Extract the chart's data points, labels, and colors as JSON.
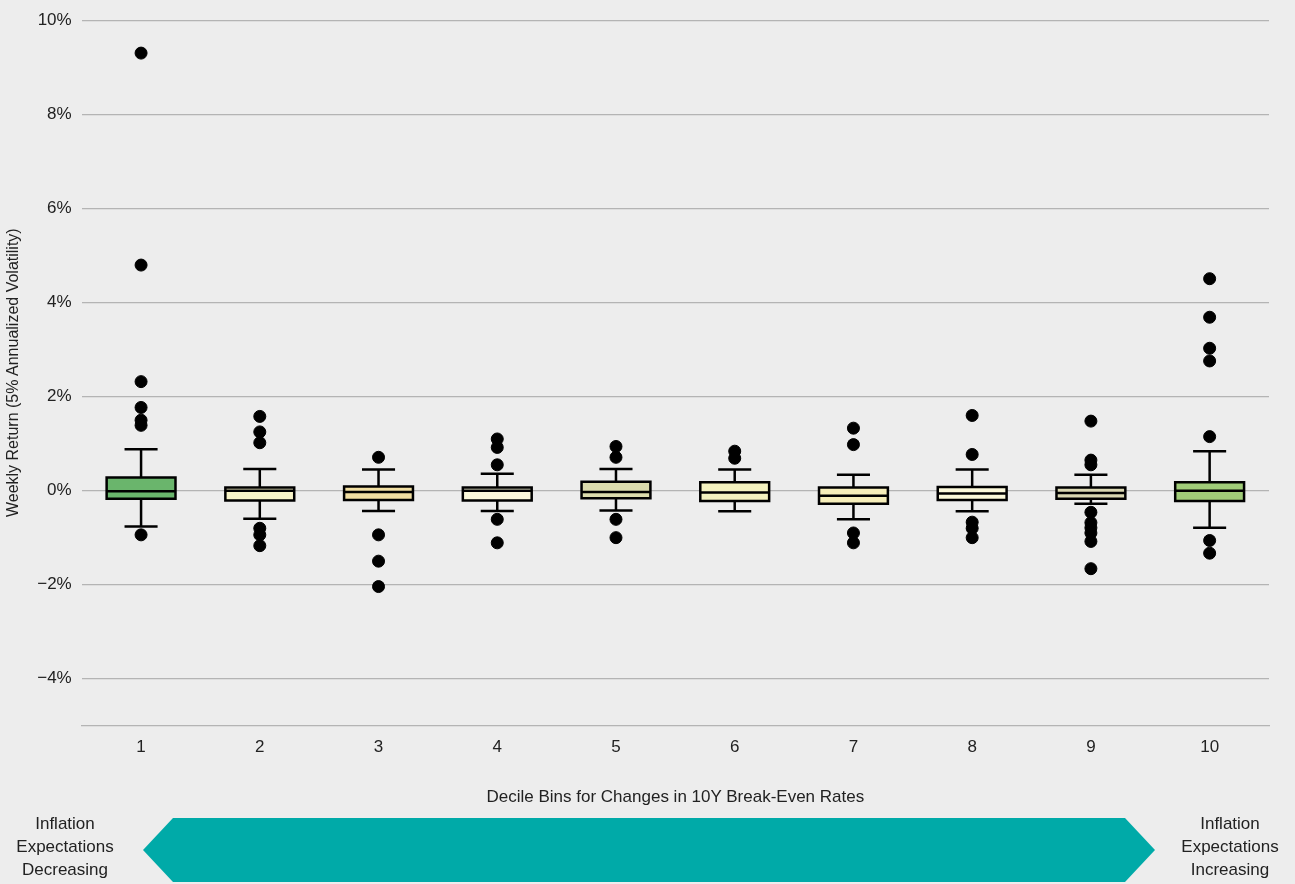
{
  "chart_data": {
    "type": "box",
    "xlabel": "Decile Bins for Changes in 10Y Break-Even Rates",
    "ylabel": "Weekly Return (5% Annualized Volatility)",
    "categories": [
      "1",
      "2",
      "3",
      "4",
      "5",
      "6",
      "7",
      "8",
      "9",
      "10"
    ],
    "colors": [
      "#6ab56c",
      "#f8f4c8",
      "#f0dea2",
      "#fbf8da",
      "#dcdcad",
      "#f4f2bf",
      "#f6eeba",
      "#fbf8da",
      "#dad7b2",
      "#a0cc78"
    ],
    "boxes": [
      {
        "low": -0.77,
        "q1": -0.18,
        "median": -0.02,
        "q3": 0.27,
        "high": 0.87,
        "outliers": [
          9.3,
          4.79,
          2.31,
          1.76,
          1.49,
          1.38,
          -0.95
        ]
      },
      {
        "low": -0.61,
        "q1": -0.22,
        "median": -0.01,
        "q3": 0.06,
        "high": 0.45,
        "outliers": [
          1.57,
          1.24,
          1.01,
          -0.81,
          -0.95,
          -1.18
        ]
      },
      {
        "low": -0.44,
        "q1": -0.21,
        "median": -0.04,
        "q3": 0.08,
        "high": 0.44,
        "outliers": [
          0.7,
          -0.95,
          -1.51,
          -2.05
        ]
      },
      {
        "low": -0.44,
        "q1": -0.22,
        "median": -0.01,
        "q3": 0.06,
        "high": 0.35,
        "outliers": [
          1.09,
          0.91,
          0.54,
          -0.62,
          -1.12
        ]
      },
      {
        "low": -0.43,
        "q1": -0.17,
        "median": -0.04,
        "q3": 0.18,
        "high": 0.45,
        "outliers": [
          0.93,
          0.7,
          -0.62,
          -1.01
        ]
      },
      {
        "low": -0.45,
        "q1": -0.23,
        "median": -0.05,
        "q3": 0.17,
        "high": 0.44,
        "outliers": [
          0.83,
          0.68
        ]
      },
      {
        "low": -0.62,
        "q1": -0.29,
        "median": -0.12,
        "q3": 0.06,
        "high": 0.33,
        "outliers": [
          1.32,
          0.97,
          -0.91,
          -1.12
        ]
      },
      {
        "low": -0.45,
        "q1": -0.21,
        "median": -0.07,
        "q3": 0.07,
        "high": 0.44,
        "outliers": [
          1.59,
          0.76,
          -0.68,
          -0.81,
          -1.01
        ]
      },
      {
        "low": -0.29,
        "q1": -0.18,
        "median": -0.06,
        "q3": 0.06,
        "high": 0.33,
        "outliers": [
          1.47,
          0.64,
          0.54,
          -0.47,
          -0.69,
          -0.8,
          -0.91,
          -1.09,
          -1.67
        ]
      },
      {
        "low": -0.8,
        "q1": -0.23,
        "median": -0.01,
        "q3": 0.17,
        "high": 0.83,
        "outliers": [
          4.5,
          3.68,
          3.02,
          2.75,
          1.14,
          -1.07,
          -1.34
        ]
      }
    ],
    "ylim": [
      -5,
      10
    ],
    "yticks": [
      {
        "value": -4,
        "label": "−4%"
      },
      {
        "value": -2,
        "label": "−2%"
      },
      {
        "value": 0,
        "label": "0%"
      },
      {
        "value": 2,
        "label": "2%"
      },
      {
        "value": 4,
        "label": "4%"
      },
      {
        "value": 6,
        "label": "6%"
      },
      {
        "value": 8,
        "label": "8%"
      },
      {
        "value": 10,
        "label": "10%"
      }
    ],
    "grid": "y",
    "marker": "circle",
    "legend": false,
    "annotations": [
      "Inflation Expectations Decreasing",
      "Inflation Expectations Increasing"
    ]
  }
}
